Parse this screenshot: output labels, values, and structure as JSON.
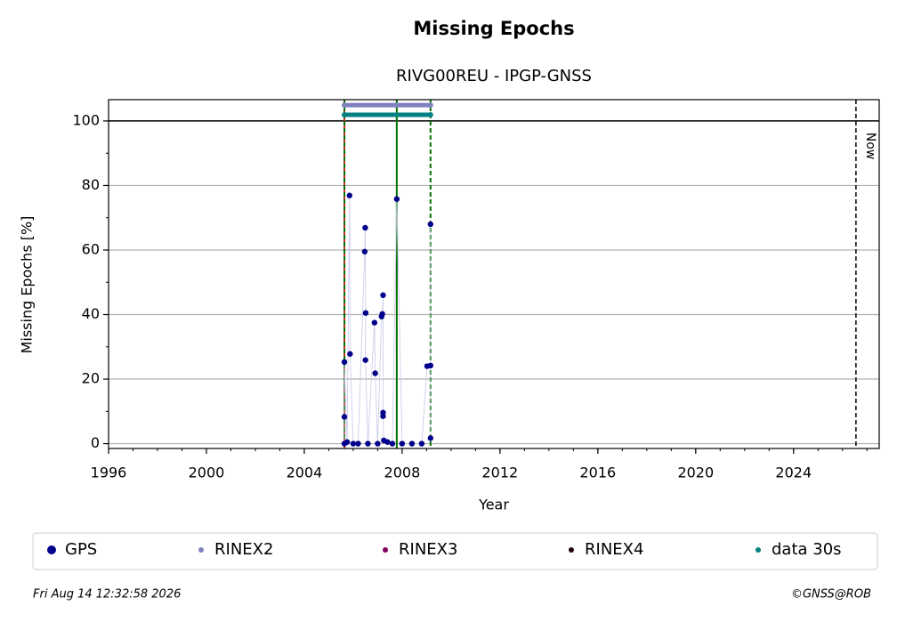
{
  "chart_data": {
    "type": "scatter",
    "title": "Missing Epochs",
    "subtitle": "RIVG00REU - IPGP-GNSS",
    "x_label": "Year",
    "y_label": "Missing Epochs [%]",
    "xlim": [
      1996,
      2027.5
    ],
    "ylim": [
      -1.5,
      106.6
    ],
    "xticks": [
      1996,
      2000,
      2004,
      2008,
      2012,
      2016,
      2020,
      2024
    ],
    "yticks": [
      0,
      20,
      40,
      60,
      80,
      100
    ],
    "xminor": 1,
    "yminor": 10,
    "grid": true,
    "hline": 100,
    "vlines": [
      {
        "x": 2005.64,
        "color": "#d62728",
        "dash": false
      },
      {
        "x": 2005.64,
        "color": "#007000",
        "dash": true
      },
      {
        "x": 2007.78,
        "color": "#007000",
        "dash": false
      },
      {
        "x": 2009.16,
        "color": "#007000",
        "dash": true
      }
    ],
    "now": {
      "x": 2026.55,
      "label": "Now"
    },
    "series": [
      {
        "name": "GPS",
        "color": "#00008b",
        "x": [
          2005.64,
          2005.64,
          2005.64,
          2005.75,
          2005.85,
          2005.87,
          2006.0,
          2006.2,
          2006.47,
          2006.49,
          2006.51,
          2006.5,
          2006.6,
          2006.87,
          2006.9,
          2007.0,
          2007.16,
          2007.19,
          2007.22,
          2007.22,
          2007.22,
          2007.25,
          2007.4,
          2007.6,
          2007.78,
          2008.0,
          2008.4,
          2008.8,
          2009.02,
          2009.16,
          2009.16,
          2009.16
        ],
        "values": [
          0,
          8.3,
          25.3,
          0.5,
          76.9,
          27.8,
          0,
          0,
          59.5,
          66.9,
          40.5,
          25.9,
          0,
          37.5,
          21.8,
          0,
          39.4,
          40.2,
          46.0,
          9.6,
          8.5,
          1,
          0.5,
          0,
          75.8,
          0,
          0,
          0,
          24.0,
          24.2,
          68.0,
          1.7
        ]
      },
      {
        "name": "RINEX2",
        "color": "#8080c0",
        "x": [
          2005.64,
          2009.16
        ],
        "values": [
          104.9,
          104.9
        ]
      },
      {
        "name": "RINEX3",
        "color": "#800060",
        "x": [],
        "values": []
      },
      {
        "name": "RINEX4",
        "color": "#200010",
        "x": [],
        "values": []
      },
      {
        "name": "data 30s",
        "color": "#008080",
        "x": [
          2005.64,
          2009.16
        ],
        "values": [
          101.9,
          101.9
        ]
      }
    ]
  },
  "footer": {
    "timestamp": "Fri Aug 14 12:32:58 2026",
    "credit": "©GNSS@ROB"
  }
}
